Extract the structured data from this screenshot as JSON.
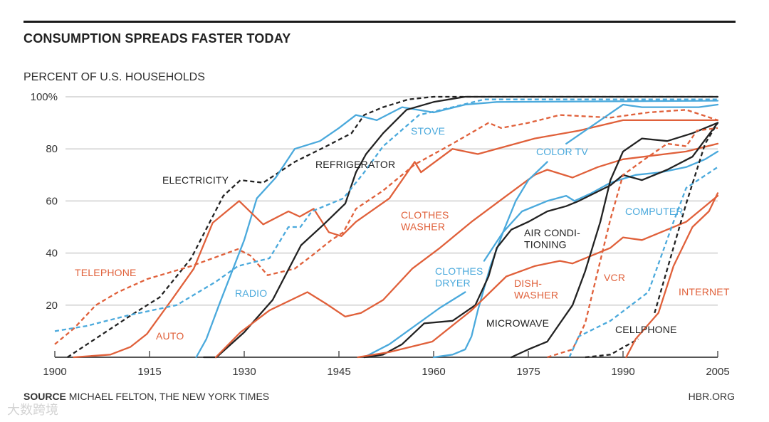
{
  "title": "CONSUMPTION SPREADS FASTER TODAY",
  "subtitle": "PERCENT OF U.S. HOUSEHOLDS",
  "footer": {
    "source_label": "SOURCE",
    "source_text": "MICHAEL FELTON, THE NEW YORK TIMES",
    "site": "HBR.ORG"
  },
  "watermark": "大数跨境",
  "colors": {
    "orange": "#e0603a",
    "blue": "#4aa9dc",
    "black": "#222222",
    "grid": "#dcdcdc"
  },
  "chart_data": {
    "type": "line",
    "title": "CONSUMPTION SPREADS FASTER TODAY",
    "ylabel": "PERCENT OF U.S. HOUSEHOLDS",
    "xlabel": "",
    "xlim": [
      1900,
      2005
    ],
    "ylim": [
      0,
      100
    ],
    "x_ticks": [
      1900,
      1915,
      1930,
      1945,
      1960,
      1975,
      1990,
      2005
    ],
    "x_tick_labels": [
      "1900",
      "1915",
      "1930",
      "1945",
      "1960",
      "1975",
      "1990",
      "2005"
    ],
    "y_ticks": [
      100,
      80,
      60,
      40,
      20
    ],
    "y_tick_labels": [
      "100%",
      "80",
      "60",
      "40",
      "20"
    ],
    "grid": true,
    "legend": "none (inline labels)",
    "series": [
      {
        "name": "ELECTRICITY",
        "label": [
          "ELECTRICITY"
        ],
        "color": "black",
        "dashed": true,
        "points": [
          [
            1902,
            0
          ],
          [
            1907,
            8
          ],
          [
            1912,
            16
          ],
          [
            1916.6,
            23
          ],
          [
            1921.6,
            38
          ],
          [
            1926.7,
            62
          ],
          [
            1929.4,
            68
          ],
          [
            1933,
            67
          ],
          [
            1938,
            75
          ],
          [
            1943,
            81
          ],
          [
            1947,
            86
          ],
          [
            1949,
            93
          ],
          [
            1952,
            96
          ],
          [
            1956,
            99
          ],
          [
            1960,
            100
          ],
          [
            2005,
            100
          ]
        ]
      },
      {
        "name": "RADIO",
        "label": [
          "RADIO"
        ],
        "color": "blue",
        "dashed": false,
        "points": [
          [
            1922.4,
            0
          ],
          [
            1924,
            7
          ],
          [
            1926,
            20
          ],
          [
            1930,
            45
          ],
          [
            1932,
            61
          ],
          [
            1935,
            69
          ],
          [
            1938,
            80
          ],
          [
            1942,
            83
          ],
          [
            1945,
            88
          ],
          [
            1947.7,
            93
          ],
          [
            1951,
            91
          ],
          [
            1955,
            96
          ],
          [
            1960,
            94
          ],
          [
            1965,
            97
          ],
          [
            1970,
            98
          ],
          [
            2005,
            98.5
          ]
        ]
      },
      {
        "name": "TELEPHONE",
        "label": [
          "TELEPHONE"
        ],
        "color": "orange",
        "dashed": true,
        "points": [
          [
            1900,
            5
          ],
          [
            1903,
            11
          ],
          [
            1906.5,
            20
          ],
          [
            1910,
            25
          ],
          [
            1914.6,
            30
          ],
          [
            1921.6,
            35
          ],
          [
            1929,
            41.5
          ],
          [
            1931,
            39
          ],
          [
            1933.7,
            31.5
          ],
          [
            1938,
            34
          ],
          [
            1940.7,
            39
          ],
          [
            1943.8,
            45
          ],
          [
            1945.7,
            48
          ],
          [
            1947.7,
            57
          ],
          [
            1952,
            64
          ],
          [
            1957,
            74
          ],
          [
            1963,
            82
          ],
          [
            1968.7,
            90
          ],
          [
            1970.7,
            88
          ],
          [
            1975,
            90
          ],
          [
            1980,
            93
          ],
          [
            1988,
            92
          ],
          [
            1994,
            94
          ],
          [
            2000,
            95
          ],
          [
            2005,
            91
          ]
        ]
      },
      {
        "name": "AUTO",
        "label": [
          "AUTO"
        ],
        "color": "orange",
        "dashed": false,
        "points": [
          [
            1903,
            0
          ],
          [
            1908.8,
            1
          ],
          [
            1912,
            4
          ],
          [
            1914.6,
            9
          ],
          [
            1918.5,
            22
          ],
          [
            1922,
            34
          ],
          [
            1925,
            51.6
          ],
          [
            1929.2,
            60
          ],
          [
            1933,
            51
          ],
          [
            1937,
            56
          ],
          [
            1938.8,
            54
          ],
          [
            1941,
            57
          ],
          [
            1943.4,
            48
          ],
          [
            1945.4,
            46.5
          ],
          [
            1947.7,
            52
          ],
          [
            1953,
            61
          ],
          [
            1957,
            75
          ],
          [
            1958,
            71
          ],
          [
            1963,
            80
          ],
          [
            1967,
            78
          ],
          [
            1976,
            84
          ],
          [
            1983,
            87
          ],
          [
            1990,
            91
          ],
          [
            2005,
            91
          ]
        ]
      },
      {
        "name": "REFRIGERATOR",
        "label": [
          "REFRIGERATOR"
        ],
        "color": "black",
        "dashed": false,
        "points": [
          [
            1923.6,
            0
          ],
          [
            1925.6,
            0
          ],
          [
            1930,
            9.6
          ],
          [
            1934.5,
            22
          ],
          [
            1939,
            43
          ],
          [
            1942.6,
            51
          ],
          [
            1946,
            59
          ],
          [
            1947.7,
            71
          ],
          [
            1949.3,
            78
          ],
          [
            1952,
            86
          ],
          [
            1955.7,
            95
          ],
          [
            1960,
            98
          ],
          [
            1965,
            100
          ],
          [
            2005,
            100
          ]
        ]
      },
      {
        "name": "STOVE",
        "label": [
          "STOVE"
        ],
        "color": "blue",
        "dashed": true,
        "points": [
          [
            1900,
            10
          ],
          [
            1905,
            12
          ],
          [
            1911.5,
            16
          ],
          [
            1919.3,
            20
          ],
          [
            1925.5,
            29
          ],
          [
            1929,
            35
          ],
          [
            1934,
            38
          ],
          [
            1937,
            50
          ],
          [
            1938.9,
            50
          ],
          [
            1940.7,
            56
          ],
          [
            1945.7,
            61
          ],
          [
            1949,
            71
          ],
          [
            1952,
            81
          ],
          [
            1957.7,
            93
          ],
          [
            1963,
            96
          ],
          [
            1968,
            99
          ],
          [
            2005,
            99
          ]
        ]
      },
      {
        "name": "CLOTHES WASHER",
        "label": [
          "CLOTHES",
          "WASHER"
        ],
        "color": "orange",
        "dashed": false,
        "points": [
          [
            1925.5,
            0
          ],
          [
            1929.4,
            9.6
          ],
          [
            1934,
            18
          ],
          [
            1940,
            25
          ],
          [
            1943,
            20.5
          ],
          [
            1946,
            15.6
          ],
          [
            1948.5,
            17
          ],
          [
            1952,
            22
          ],
          [
            1956.6,
            34
          ],
          [
            1961,
            42
          ],
          [
            1966,
            52
          ],
          [
            1971,
            61
          ],
          [
            1976,
            70
          ],
          [
            1978,
            72
          ],
          [
            1982,
            69
          ],
          [
            1986,
            73
          ],
          [
            1990,
            76
          ],
          [
            2000,
            79
          ],
          [
            2005,
            82
          ]
        ]
      },
      {
        "name": "CLOTHES DRYER",
        "label": [
          "CLOTHES",
          "DRYER"
        ],
        "color": "blue",
        "dashed": false,
        "points": [
          [
            1949,
            0
          ],
          [
            1953,
            5
          ],
          [
            1957,
            12
          ],
          [
            1961,
            19
          ],
          [
            1965,
            25
          ],
          null,
          [
            1968,
            37
          ],
          [
            1971,
            48
          ],
          [
            1974,
            56
          ],
          [
            1978,
            60
          ],
          [
            1981,
            62
          ],
          [
            1982.3,
            60
          ],
          [
            1985,
            63
          ],
          [
            1988,
            67
          ],
          [
            1992,
            70
          ],
          [
            1996,
            71
          ],
          [
            2000,
            73
          ],
          [
            2003,
            76
          ],
          [
            2005,
            79
          ]
        ]
      },
      {
        "name": "COLOR TV",
        "label": [
          "COLOR TV"
        ],
        "color": "blue",
        "dashed": false,
        "points": [
          [
            1960,
            0
          ],
          [
            1963,
            1
          ],
          [
            1965,
            3
          ],
          [
            1966,
            8
          ],
          [
            1967,
            18
          ],
          [
            1969,
            35
          ],
          [
            1971,
            48
          ],
          [
            1973,
            60
          ],
          [
            1975,
            68
          ],
          [
            1978,
            75
          ],
          null,
          [
            1981,
            82
          ],
          [
            1984,
            87
          ],
          [
            1987,
            92
          ],
          [
            1990,
            97
          ],
          [
            1993,
            96
          ],
          [
            1998,
            96
          ],
          [
            2002,
            96
          ],
          [
            2005,
            97
          ]
        ]
      },
      {
        "name": "AIR CONDITIONING",
        "label": [
          "AIR CONDI-",
          "TIONING"
        ],
        "color": "black",
        "dashed": false,
        "points": [
          [
            1949,
            0
          ],
          [
            1952,
            1
          ],
          [
            1955,
            5
          ],
          [
            1958.5,
            13
          ],
          [
            1963,
            14
          ],
          [
            1966.6,
            20
          ],
          [
            1968.7,
            31
          ],
          [
            1970,
            42
          ],
          [
            1972.3,
            49
          ],
          [
            1975,
            52
          ],
          [
            1978,
            56
          ],
          [
            1981,
            58
          ],
          [
            1983,
            60
          ],
          [
            1988,
            66
          ],
          [
            1990,
            70
          ],
          [
            1993,
            68
          ],
          [
            1997,
            72
          ],
          [
            2001,
            77
          ],
          [
            2005,
            90
          ]
        ]
      },
      {
        "name": "DISHWASHER",
        "label": [
          "DISH-",
          "WASHER"
        ],
        "color": "orange",
        "dashed": false,
        "points": [
          [
            1948,
            0
          ],
          [
            1953,
            2
          ],
          [
            1959.8,
            6
          ],
          [
            1966,
            18
          ],
          [
            1971.5,
            31
          ],
          [
            1976,
            35
          ],
          [
            1980,
            37
          ],
          [
            1982,
            36
          ],
          [
            1988,
            42
          ],
          [
            1990,
            46
          ],
          [
            1993,
            45
          ],
          [
            2000,
            52
          ],
          [
            2005,
            62
          ]
        ]
      },
      {
        "name": "MICROWAVE",
        "label": [
          "MICROWAVE"
        ],
        "color": "black",
        "dashed": false,
        "points": [
          [
            1972.3,
            0
          ],
          [
            1975,
            3
          ],
          [
            1978,
            6
          ],
          [
            1980,
            13
          ],
          [
            1982,
            20
          ],
          [
            1984,
            33
          ],
          [
            1986.4,
            52
          ],
          [
            1988,
            68
          ],
          [
            1990,
            79
          ],
          [
            1993,
            84
          ],
          [
            1997,
            83
          ],
          [
            2001,
            86
          ],
          [
            2005,
            90
          ]
        ]
      },
      {
        "name": "VCR",
        "label": [
          "VCR"
        ],
        "color": "orange",
        "dashed": true,
        "points": [
          [
            1978,
            0
          ],
          [
            1982,
            3
          ],
          [
            1984,
            13
          ],
          [
            1986,
            33
          ],
          [
            1988,
            53
          ],
          [
            1990,
            70
          ],
          [
            1994,
            77
          ],
          [
            1997,
            82
          ],
          [
            2000,
            81
          ],
          [
            2001.7,
            87
          ],
          [
            2005,
            88
          ]
        ]
      },
      {
        "name": "COMPUTER",
        "label": [
          "COMPUTER"
        ],
        "color": "blue",
        "dashed": true,
        "points": [
          [
            1981.5,
            0
          ],
          [
            1983,
            8
          ],
          [
            1988,
            14
          ],
          [
            1994,
            25
          ],
          [
            1998,
            52
          ],
          [
            2000,
            65
          ],
          [
            2005,
            73
          ]
        ]
      },
      {
        "name": "CELLPHONE",
        "label": [
          "CELLPHONE"
        ],
        "color": "black",
        "dashed": true,
        "points": [
          [
            1984,
            0
          ],
          [
            1988,
            1
          ],
          [
            1992.4,
            7
          ],
          null,
          [
            1995,
            17
          ],
          [
            2000,
            59
          ],
          [
            2003,
            82
          ],
          [
            2005,
            90
          ]
        ]
      },
      {
        "name": "INTERNET",
        "label": [
          "INTERNET"
        ],
        "color": "orange",
        "dashed": false,
        "points": [
          [
            1990.5,
            0
          ],
          [
            1992,
            7
          ],
          [
            1995.6,
            17
          ],
          [
            1998,
            35
          ],
          [
            2001,
            50
          ],
          [
            2003.6,
            56
          ],
          [
            2005,
            63
          ]
        ]
      }
    ]
  }
}
